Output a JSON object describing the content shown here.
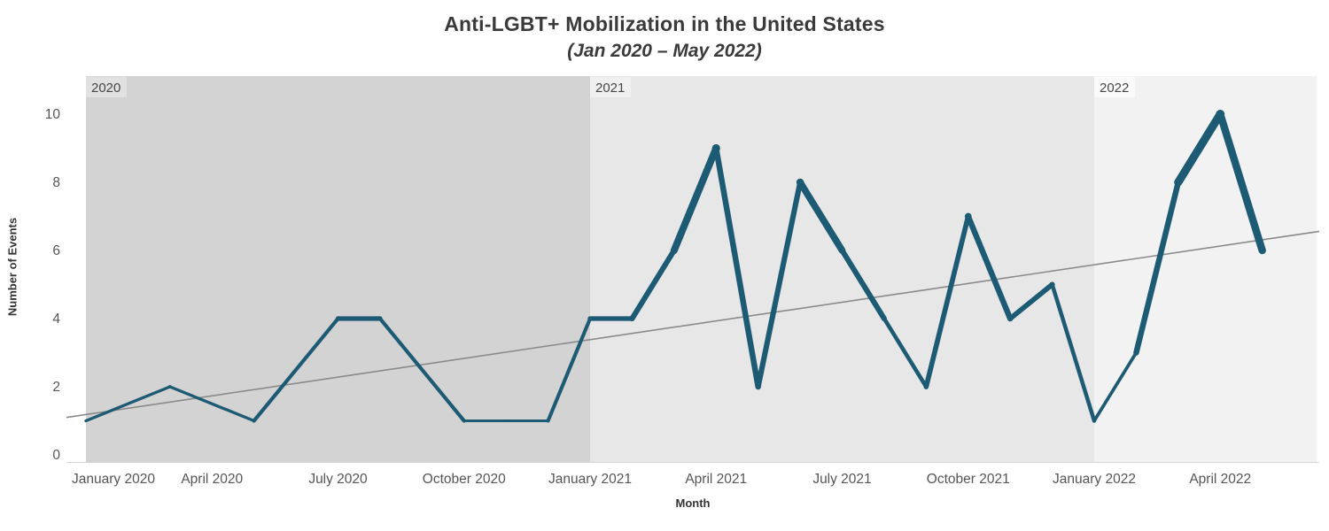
{
  "title": "Anti-LGBT+ Mobilization in the United States",
  "subtitle": "(Jan 2020 – May 2022)",
  "chart_data": {
    "type": "line",
    "title": "Anti-LGBT+ Mobilization in the United States",
    "subtitle": "(Jan 2020 – May 2022)",
    "xlabel": "Month",
    "ylabel": "Number of Events",
    "ylim": [
      0,
      10
    ],
    "yticks": [
      0,
      2,
      4,
      6,
      8,
      10
    ],
    "grid": "off",
    "legend": "none",
    "months": [
      "Jan 2020",
      "Feb 2020",
      "Mar 2020",
      "Apr 2020",
      "May 2020",
      "Jun 2020",
      "Jul 2020",
      "Aug 2020",
      "Sep 2020",
      "Oct 2020",
      "Nov 2020",
      "Dec 2020",
      "Jan 2021",
      "Feb 2021",
      "Mar 2021",
      "Apr 2021",
      "May 2021",
      "Jun 2021",
      "Jul 2021",
      "Aug 2021",
      "Sep 2021",
      "Oct 2021",
      "Nov 2021",
      "Dec 2021",
      "Jan 2022",
      "Feb 2022",
      "Mar 2022",
      "Apr 2022",
      "May 2022"
    ],
    "values": [
      1,
      null,
      2,
      null,
      1,
      null,
      4,
      4,
      null,
      1,
      1,
      1,
      4,
      4,
      6,
      9,
      2,
      8,
      6,
      4,
      2,
      7,
      4,
      5,
      1,
      3,
      8,
      10,
      6
    ],
    "size_encoding": "line thickness increases with value",
    "xticks": [
      {
        "label": "January 2020",
        "month_index": 0
      },
      {
        "label": "April 2020",
        "month_index": 3
      },
      {
        "label": "July 2020",
        "month_index": 6
      },
      {
        "label": "October 2020",
        "month_index": 9
      },
      {
        "label": "January 2021",
        "month_index": 12
      },
      {
        "label": "April 2021",
        "month_index": 15
      },
      {
        "label": "July 2021",
        "month_index": 18
      },
      {
        "label": "October 2021",
        "month_index": 21
      },
      {
        "label": "January 2022",
        "month_index": 24
      },
      {
        "label": "April 2022",
        "month_index": 27
      }
    ],
    "year_bands": [
      {
        "label": "2020",
        "start_month_index": 0,
        "end_month_index": 12,
        "band_color": "#d3d3d3",
        "chip_color": "#e1e1e1"
      },
      {
        "label": "2021",
        "start_month_index": 12,
        "end_month_index": 24,
        "band_color": "#e7e7e7",
        "chip_color": "#f0f0f0"
      },
      {
        "label": "2022",
        "start_month_index": 24,
        "end_month_index": 29.3,
        "band_color": "#f2f2f2",
        "chip_color": "#fafafa"
      }
    ],
    "trend_line": {
      "start_value": 1.1,
      "end_value": 6.56,
      "color": "#8a8a8a"
    },
    "colors": {
      "line": "#1d5a73",
      "tick_text": "#555555",
      "axis_title_text": "#333333",
      "title_text": "#3a3a3a",
      "chip_text": "#464646",
      "baseline": "#d4d4d4",
      "background": "#ffffff"
    }
  }
}
